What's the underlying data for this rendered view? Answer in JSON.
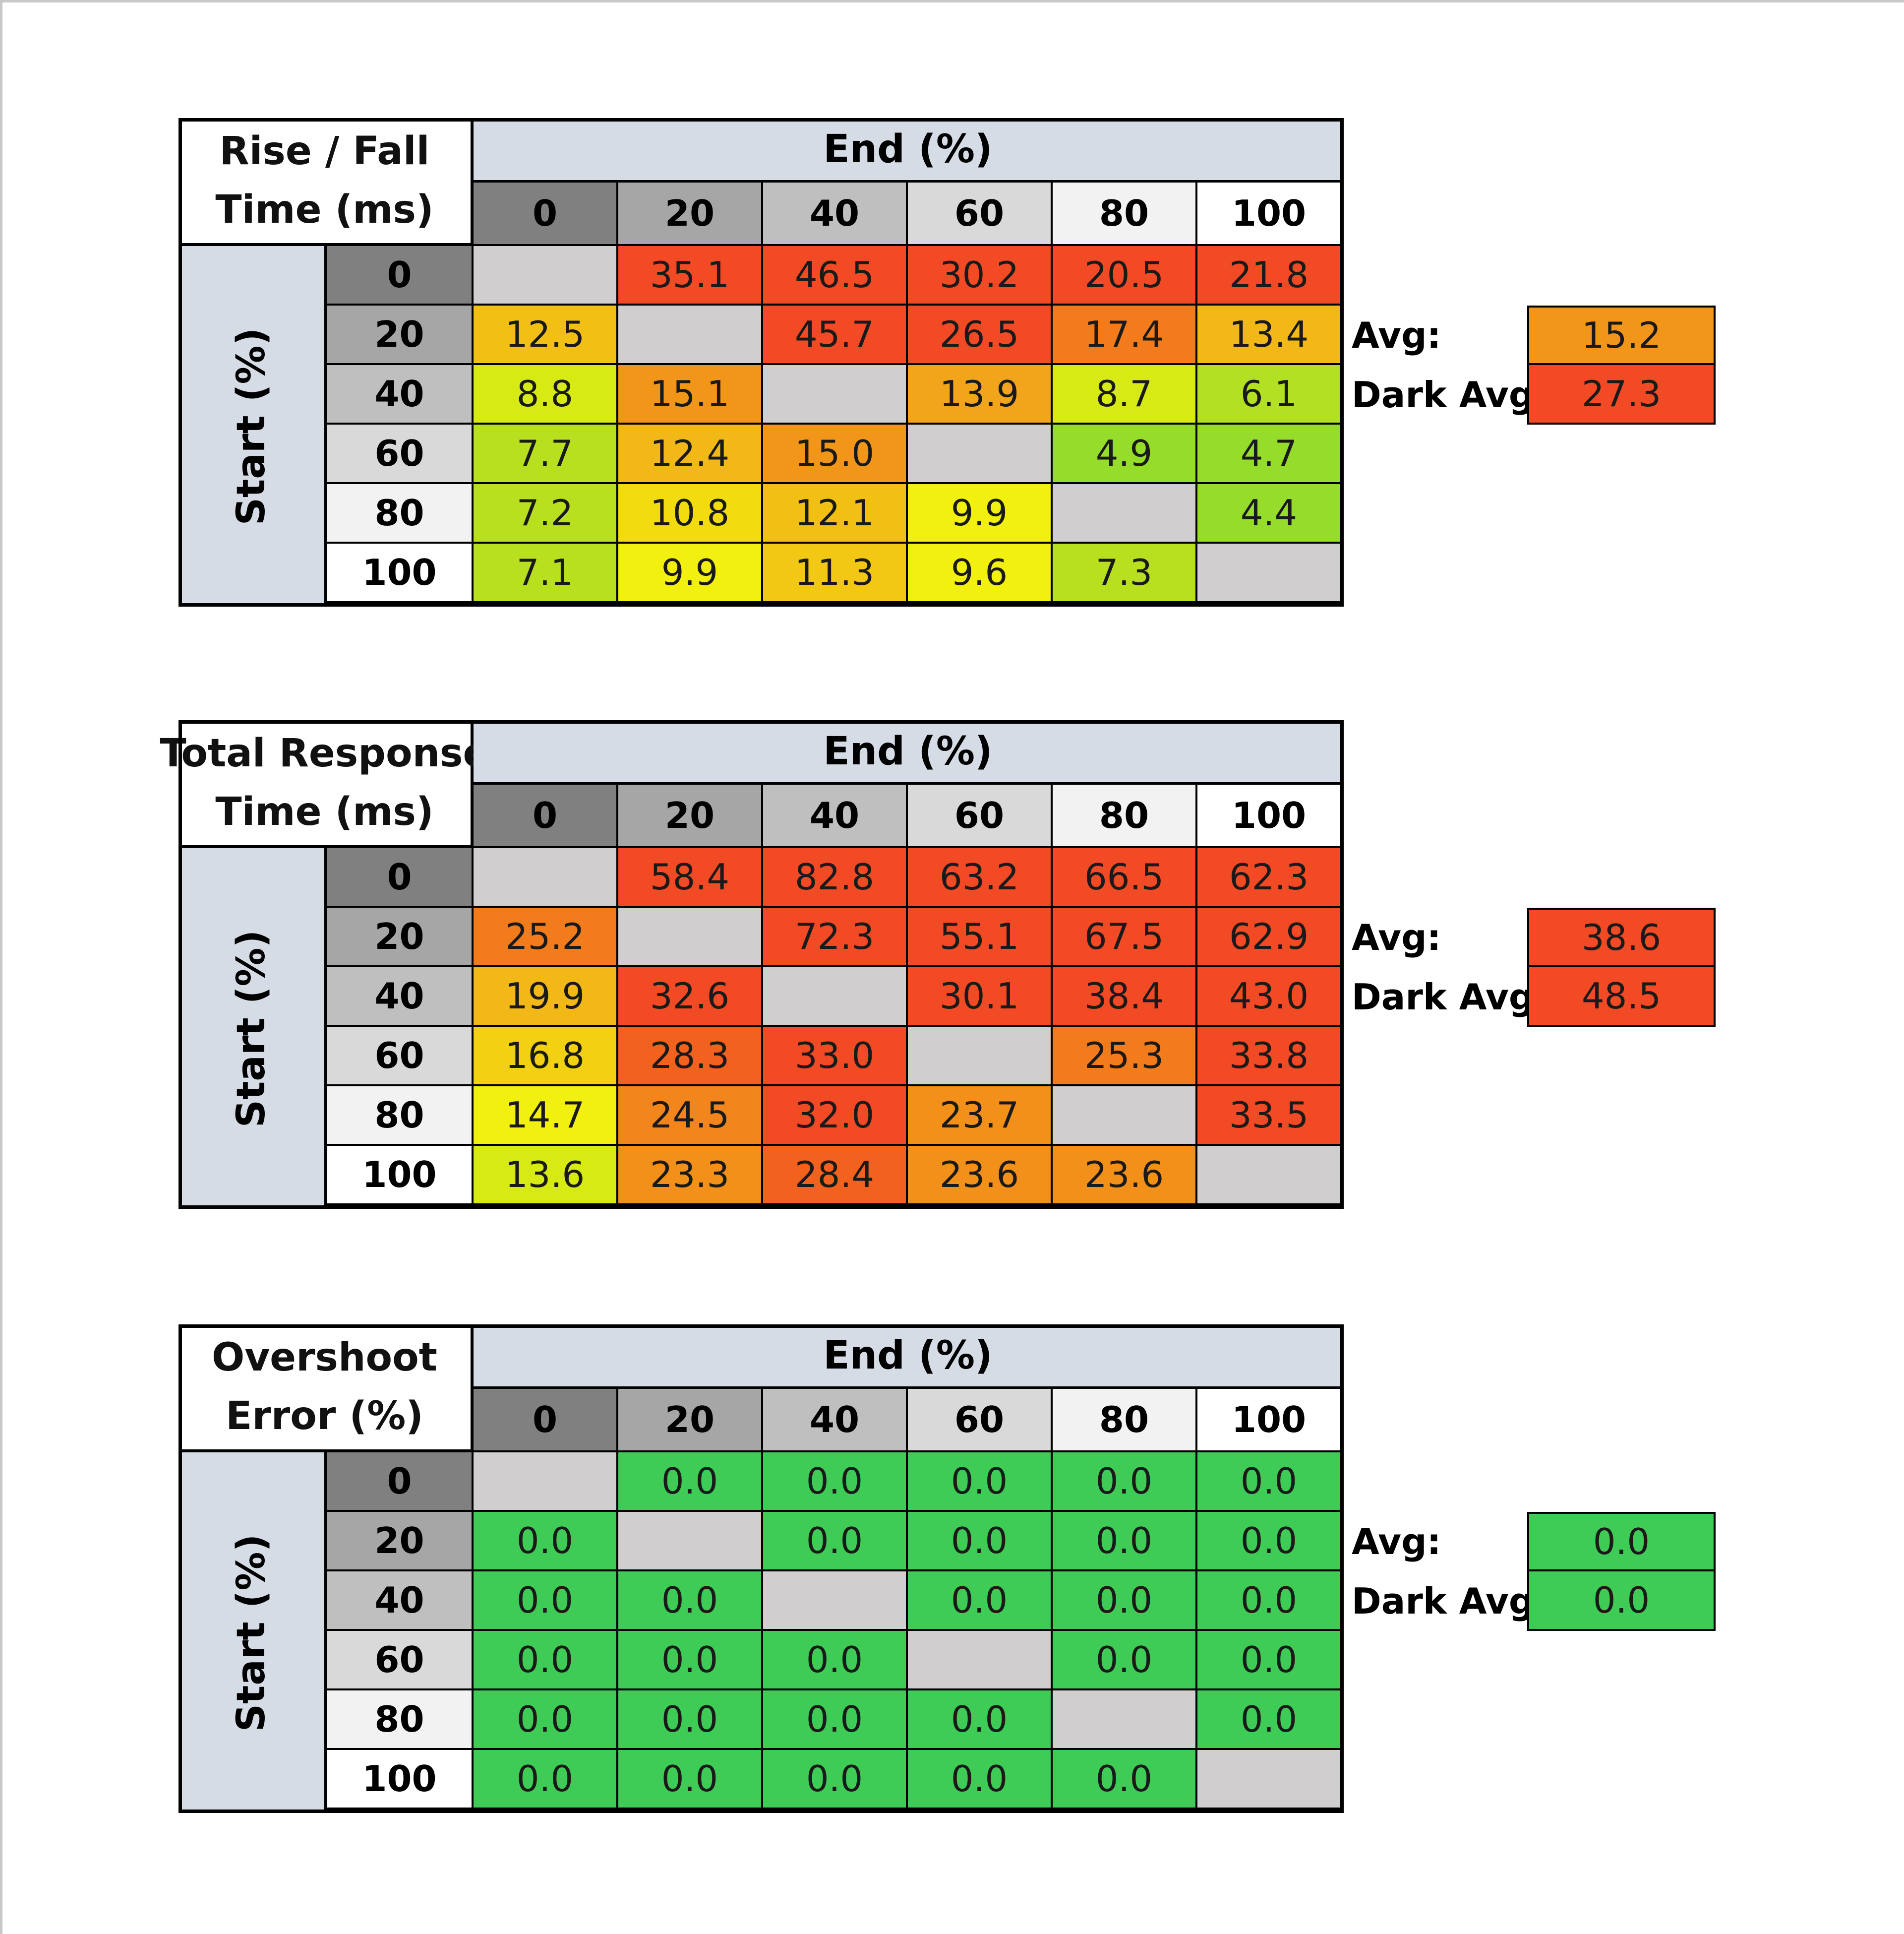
{
  "chart_data": [
    {
      "type": "table",
      "title_lines": [
        "Rise / Fall",
        "Time (ms)"
      ],
      "col_header": "End (%)",
      "row_header": "Start (%)",
      "columns": [
        "0",
        "20",
        "40",
        "60",
        "80",
        "100"
      ],
      "rows": [
        "0",
        "20",
        "40",
        "60",
        "80",
        "100"
      ],
      "values": [
        [
          null,
          35.1,
          46.5,
          30.2,
          20.5,
          21.8
        ],
        [
          12.5,
          null,
          45.7,
          26.5,
          17.4,
          13.4
        ],
        [
          8.8,
          15.1,
          null,
          13.9,
          8.7,
          6.1
        ],
        [
          7.7,
          12.4,
          15.0,
          null,
          4.9,
          4.7
        ],
        [
          7.2,
          10.8,
          12.1,
          9.9,
          null,
          4.4
        ],
        [
          7.1,
          9.9,
          11.3,
          9.6,
          7.3,
          null
        ]
      ],
      "cell_colors": [
        [
          "#d0cecf",
          "#f24a24",
          "#f24a24",
          "#f24a24",
          "#f24a24",
          "#f24a24"
        ],
        [
          "#f2c014",
          "#d0cecf",
          "#f24a24",
          "#f24a24",
          "#f27c1c",
          "#f2b818"
        ],
        [
          "#d8ea14",
          "#f2961a",
          "#d0cecf",
          "#f2a41a",
          "#d8ea14",
          "#b2e022"
        ],
        [
          "#b8e01e",
          "#f2b818",
          "#f2961a",
          "#d0cecf",
          "#96dc2a",
          "#96dc2a"
        ],
        [
          "#b8e01e",
          "#f2dc10",
          "#f2c014",
          "#f2f00e",
          "#d0cecf",
          "#96dc2a"
        ],
        [
          "#b8e01e",
          "#f2f00e",
          "#f2c814",
          "#f2f00e",
          "#b8e01e",
          "#d0cecf"
        ]
      ],
      "avg_label": "Avg:",
      "avg": 15.2,
      "avg_color": "#f2961a",
      "dark_avg_label": "Dark Avg:",
      "dark_avg": 27.3,
      "dark_avg_color": "#f24a24"
    },
    {
      "type": "table",
      "title_lines": [
        "Total Response",
        "Time (ms)"
      ],
      "col_header": "End (%)",
      "row_header": "Start (%)",
      "columns": [
        "0",
        "20",
        "40",
        "60",
        "80",
        "100"
      ],
      "rows": [
        "0",
        "20",
        "40",
        "60",
        "80",
        "100"
      ],
      "values": [
        [
          null,
          58.4,
          82.8,
          63.2,
          66.5,
          62.3
        ],
        [
          25.2,
          null,
          72.3,
          55.1,
          67.5,
          62.9
        ],
        [
          19.9,
          32.6,
          null,
          30.1,
          38.4,
          43.0
        ],
        [
          16.8,
          28.3,
          33.0,
          null,
          25.3,
          33.8
        ],
        [
          14.7,
          24.5,
          32.0,
          23.7,
          null,
          33.5
        ],
        [
          13.6,
          23.3,
          28.4,
          23.6,
          23.6,
          null
        ]
      ],
      "cell_colors": [
        [
          "#d0cecf",
          "#f24a24",
          "#f24a24",
          "#f24a24",
          "#f24a24",
          "#f24a24"
        ],
        [
          "#f27c1c",
          "#d0cecf",
          "#f24a24",
          "#f24a24",
          "#f24a24",
          "#f24a24"
        ],
        [
          "#f2b818",
          "#f24a24",
          "#d0cecf",
          "#f24a24",
          "#f24a24",
          "#f24a24"
        ],
        [
          "#f2d012",
          "#f2621e",
          "#f24a24",
          "#d0cecf",
          "#f27c1c",
          "#f24a24"
        ],
        [
          "#f2f00e",
          "#f2861c",
          "#f24a24",
          "#f2901a",
          "#d0cecf",
          "#f24a24"
        ],
        [
          "#d8ea14",
          "#f2901a",
          "#f2621e",
          "#f2901a",
          "#f2901a",
          "#d0cecf"
        ]
      ],
      "avg_label": "Avg:",
      "avg": 38.6,
      "avg_color": "#f24a24",
      "dark_avg_label": "Dark Avg:",
      "dark_avg": 48.5,
      "dark_avg_color": "#f24a24"
    },
    {
      "type": "table",
      "title_lines": [
        "Overshoot",
        "Error (%)"
      ],
      "col_header": "End (%)",
      "row_header": "Start (%)",
      "columns": [
        "0",
        "20",
        "40",
        "60",
        "80",
        "100"
      ],
      "rows": [
        "0",
        "20",
        "40",
        "60",
        "80",
        "100"
      ],
      "values": [
        [
          null,
          "0.0",
          "0.0",
          "0.0",
          "0.0",
          "0.0"
        ],
        [
          "0.0",
          null,
          "0.0",
          "0.0",
          "0.0",
          "0.0"
        ],
        [
          "0.0",
          "0.0",
          null,
          "0.0",
          "0.0",
          "0.0"
        ],
        [
          "0.0",
          "0.0",
          "0.0",
          null,
          "0.0",
          "0.0"
        ],
        [
          "0.0",
          "0.0",
          "0.0",
          "0.0",
          null,
          "0.0"
        ],
        [
          "0.0",
          "0.0",
          "0.0",
          "0.0",
          "0.0",
          null
        ]
      ],
      "cell_colors": [
        [
          "#d0cecf",
          "#3ecc56",
          "#3ecc56",
          "#3ecc56",
          "#3ecc56",
          "#3ecc56"
        ],
        [
          "#3ecc56",
          "#d0cecf",
          "#3ecc56",
          "#3ecc56",
          "#3ecc56",
          "#3ecc56"
        ],
        [
          "#3ecc56",
          "#3ecc56",
          "#d0cecf",
          "#3ecc56",
          "#3ecc56",
          "#3ecc56"
        ],
        [
          "#3ecc56",
          "#3ecc56",
          "#3ecc56",
          "#d0cecf",
          "#3ecc56",
          "#3ecc56"
        ],
        [
          "#3ecc56",
          "#3ecc56",
          "#3ecc56",
          "#3ecc56",
          "#d0cecf",
          "#3ecc56"
        ],
        [
          "#3ecc56",
          "#3ecc56",
          "#3ecc56",
          "#3ecc56",
          "#3ecc56",
          "#d0cecf"
        ]
      ],
      "avg_label": "Avg:",
      "avg": "0.0",
      "avg_color": "#3ecc56",
      "dark_avg_label": "Dark Avg:",
      "dark_avg": "0.0",
      "dark_avg_color": "#3ecc56"
    }
  ],
  "header_shades": [
    "#808080",
    "#a6a6a6",
    "#bfbfbf",
    "#d9d9d9",
    "#f2f2f2",
    "#ffffff"
  ],
  "label_shade": "#d6dce5"
}
